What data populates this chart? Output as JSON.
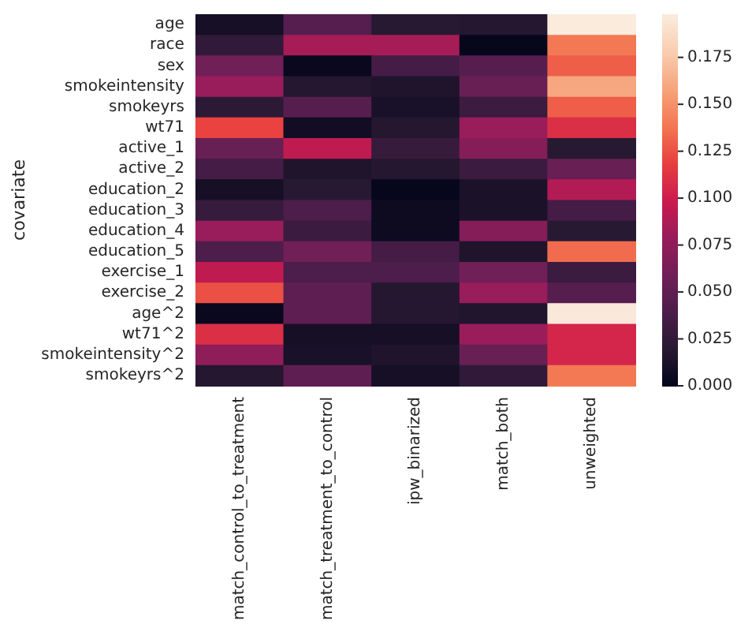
{
  "chart_data": {
    "type": "heatmap",
    "ylabel": "covariate",
    "categories": [
      "match_control_to_treatment",
      "match_treatment_to_control",
      "ipw_binarized",
      "match_both",
      "unweighted"
    ],
    "y_categories": [
      "age",
      "race",
      "sex",
      "smokeintensity",
      "smokeyrs",
      "wt71",
      "active_1",
      "active_2",
      "education_2",
      "education_3",
      "education_4",
      "education_5",
      "exercise_1",
      "exercise_2",
      "age^2",
      "wt71^2",
      "smokeintensity^2",
      "smokeyrs^2"
    ],
    "cells": [
      [
        0.01,
        0.045,
        0.02,
        0.018,
        0.198
      ],
      [
        0.025,
        0.085,
        0.085,
        0.002,
        0.14
      ],
      [
        0.06,
        0.003,
        0.035,
        0.045,
        0.13
      ],
      [
        0.08,
        0.018,
        0.015,
        0.055,
        0.16
      ],
      [
        0.022,
        0.045,
        0.012,
        0.03,
        0.13
      ],
      [
        0.12,
        0.008,
        0.018,
        0.08,
        0.11
      ],
      [
        0.055,
        0.095,
        0.028,
        0.07,
        0.02
      ],
      [
        0.035,
        0.015,
        0.018,
        0.03,
        0.055
      ],
      [
        0.01,
        0.02,
        0.002,
        0.013,
        0.09
      ],
      [
        0.028,
        0.04,
        0.006,
        0.013,
        0.035
      ],
      [
        0.08,
        0.03,
        0.006,
        0.07,
        0.02
      ],
      [
        0.04,
        0.06,
        0.035,
        0.015,
        0.135
      ],
      [
        0.095,
        0.04,
        0.04,
        0.06,
        0.03
      ],
      [
        0.125,
        0.05,
        0.018,
        0.08,
        0.045
      ],
      [
        0.003,
        0.05,
        0.018,
        0.016,
        0.197
      ],
      [
        0.11,
        0.01,
        0.01,
        0.08,
        0.105
      ],
      [
        0.075,
        0.012,
        0.015,
        0.055,
        0.105
      ],
      [
        0.018,
        0.05,
        0.01,
        0.025,
        0.14
      ]
    ],
    "clim": [
      0,
      0.198
    ],
    "cticks": [
      {
        "value": 0,
        "label": "0.000"
      },
      0.025,
      {
        "value": 0.05,
        "label": "0.050"
      },
      0.075,
      {
        "value": 0.1,
        "label": "0.100"
      },
      0.125,
      {
        "value": 0.15,
        "label": "0.150"
      },
      0.175
    ]
  }
}
